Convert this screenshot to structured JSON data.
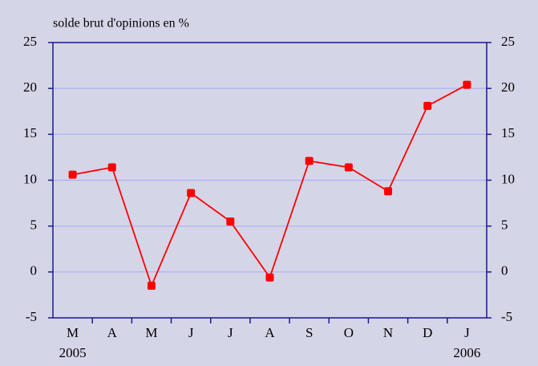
{
  "chart_data": {
    "type": "line",
    "title": "solde brut d'opinions en %",
    "categories": [
      "M",
      "A",
      "M",
      "J",
      "J",
      "A",
      "S",
      "O",
      "N",
      "D",
      "J"
    ],
    "year_labels": [
      "2005",
      "2006"
    ],
    "series": [
      {
        "name": "solde brut d'opinions",
        "color": "#ff0000",
        "values": [
          10.6,
          11.4,
          -1.5,
          8.6,
          5.5,
          -0.6,
          12.1,
          11.4,
          8.8,
          18.1,
          20.4
        ]
      }
    ],
    "ylim": [
      -5,
      25
    ],
    "yticks": [
      -5,
      0,
      5,
      10,
      15,
      20,
      25
    ],
    "y2lim": [
      -5,
      25
    ],
    "y2ticks": [
      -5,
      0,
      5,
      10,
      15,
      20,
      25
    ],
    "grid": true
  }
}
